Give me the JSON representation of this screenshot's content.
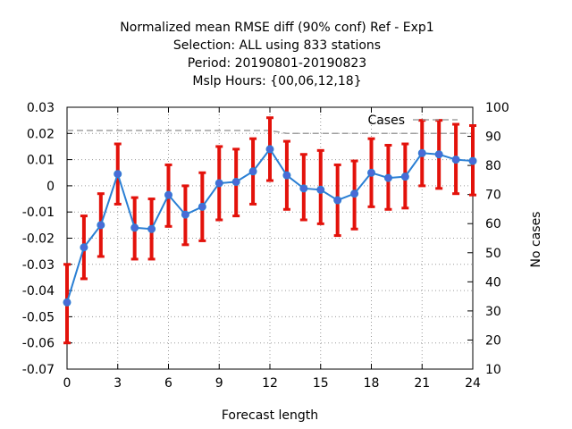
{
  "chart_data": {
    "type": "line",
    "title_lines": [
      "Normalized mean RMSE diff (90% conf) Ref - Exp1",
      "Selection: ALL using   833 stations",
      "Period: 20190801-20190823",
      "Mslp   Hours: {00,06,12,18}"
    ],
    "xlabel": "Forecast length",
    "ylabel": "",
    "y2label": "No cases",
    "xlim": [
      0,
      24
    ],
    "ylim": [
      -0.07,
      0.03
    ],
    "y2lim": [
      10,
      100
    ],
    "x_ticks": [
      0,
      3,
      6,
      9,
      12,
      15,
      18,
      21,
      24
    ],
    "y_ticks": [
      -0.07,
      -0.06,
      -0.05,
      -0.04,
      -0.03,
      -0.02,
      -0.01,
      0,
      0.01,
      0.02,
      0.03
    ],
    "y_tick_labels": [
      "-0.07",
      "-0.06",
      "-0.05",
      "-0.04",
      "-0.03",
      "-0.02",
      "-0.01",
      "0",
      "0.01",
      "0.02",
      "0.03"
    ],
    "y2_ticks": [
      10,
      20,
      30,
      40,
      50,
      60,
      70,
      80,
      90,
      100
    ],
    "grid": true,
    "legend_position": "top-right",
    "series": [
      {
        "name": "",
        "color": "#2a7fd4",
        "marker_color": "#4a6ad6",
        "x": [
          0,
          1,
          2,
          3,
          4,
          5,
          6,
          7,
          8,
          9,
          10,
          11,
          12,
          13,
          14,
          15,
          16,
          17,
          18,
          19,
          20,
          21,
          22,
          23,
          24
        ],
        "y": [
          -0.0445,
          -0.0235,
          -0.015,
          0.0045,
          -0.016,
          -0.0165,
          -0.0035,
          -0.011,
          -0.008,
          0.001,
          0.0015,
          0.0055,
          0.014,
          0.004,
          -0.001,
          -0.0015,
          -0.0055,
          -0.003,
          0.005,
          0.003,
          0.0035,
          0.0125,
          0.012,
          0.01,
          0.0095
        ],
        "err_low": [
          -0.06,
          -0.0355,
          -0.027,
          -0.007,
          -0.028,
          -0.028,
          -0.0155,
          -0.0225,
          -0.021,
          -0.013,
          -0.0115,
          -0.007,
          0.002,
          -0.009,
          -0.013,
          -0.0145,
          -0.019,
          -0.0165,
          -0.008,
          -0.009,
          -0.0085,
          0.0,
          -0.001,
          -0.003,
          -0.0035
        ],
        "err_high": [
          -0.03,
          -0.0115,
          -0.003,
          0.016,
          -0.0045,
          -0.005,
          0.008,
          0.0,
          0.005,
          0.015,
          0.014,
          0.018,
          0.026,
          0.017,
          0.012,
          0.0135,
          0.008,
          0.0095,
          0.018,
          0.0155,
          0.016,
          0.025,
          0.025,
          0.0235,
          0.023
        ],
        "err_color": "#e3120b"
      },
      {
        "name": "Cases",
        "axis": "y2",
        "color": "#a0a0a0",
        "dash": true,
        "x": [
          0,
          1,
          2,
          3,
          4,
          5,
          6,
          7,
          8,
          9,
          10,
          11,
          12,
          13,
          14,
          15,
          16,
          17,
          18,
          19,
          20,
          21,
          22,
          23,
          24
        ],
        "y": [
          92,
          92,
          92,
          92,
          92,
          92,
          92,
          92,
          92,
          92,
          92,
          92,
          92,
          91,
          91,
          91,
          91,
          91,
          91,
          91,
          91,
          91,
          91,
          91,
          91
        ]
      }
    ]
  }
}
